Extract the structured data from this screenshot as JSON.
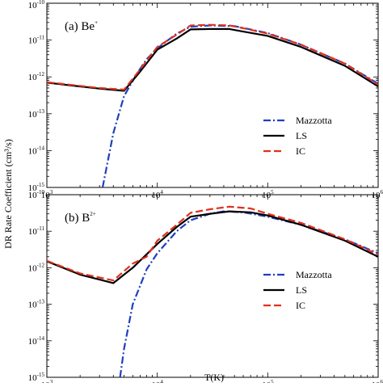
{
  "figure": {
    "ylabel": "DR Rate Coefficient (cm³/s)",
    "xlabel": "T(K)"
  },
  "legend_entries": [
    {
      "label": "Mazzotta",
      "color": "#1f3fbf",
      "style": "dash-dot"
    },
    {
      "label": "LS",
      "color": "#000000",
      "style": "solid"
    },
    {
      "label": "IC",
      "color": "#e0301e",
      "style": "dashed"
    }
  ],
  "x_ticks": [
    {
      "base": "10",
      "exp": "3",
      "value": 1000
    },
    {
      "base": "10",
      "exp": "4",
      "value": 10000
    },
    {
      "base": "10",
      "exp": "5",
      "value": 100000
    },
    {
      "base": "10",
      "exp": "6",
      "value": 1000000
    }
  ],
  "y_ticks": [
    {
      "base": "10",
      "exp": "-10",
      "value": 1e-10
    },
    {
      "base": "10",
      "exp": "-11",
      "value": 1e-11
    },
    {
      "base": "10",
      "exp": "-12",
      "value": 1e-12
    },
    {
      "base": "10",
      "exp": "-13",
      "value": 1e-13
    },
    {
      "base": "10",
      "exp": "-14",
      "value": 1e-14
    },
    {
      "base": "10",
      "exp": "-15",
      "value": 1e-15
    }
  ],
  "chart_data": [
    {
      "type": "line",
      "panel_label": "(a) Be",
      "panel_label_sup": "+",
      "xlabel": "",
      "ylabel": "DR Rate Coefficient (cm³/s)",
      "xscale": "log",
      "yscale": "log",
      "xlim": [
        1000,
        1000000
      ],
      "ylim": [
        1e-15,
        1e-10
      ],
      "legend_position": "lower-right",
      "series": [
        {
          "name": "Mazzotta",
          "x": [
            3200,
            4000,
            5000,
            6500,
            8000,
            10000,
            15000,
            20000,
            30000,
            50000,
            100000,
            200000,
            500000,
            1000000
          ],
          "y": [
            1e-15,
            3e-14,
            3e-13,
            1.2e-12,
            3e-12,
            6e-12,
            1.5e-11,
            2.3e-11,
            2.5e-11,
            2.4e-11,
            1.55e-11,
            7.5e-12,
            2.3e-12,
            6.5e-13
          ]
        },
        {
          "name": "LS",
          "x": [
            1000,
            2000,
            3000,
            5000,
            7000,
            10000,
            15000,
            20000,
            30000,
            45000,
            60000,
            100000,
            200000,
            500000,
            1000000
          ],
          "y": [
            7e-13,
            5.5e-13,
            4.8e-13,
            4.2e-13,
            1.4e-12,
            5.5e-12,
            1.1e-11,
            1.95e-11,
            2e-11,
            2e-11,
            1.7e-11,
            1.3e-11,
            6.5e-12,
            2e-12,
            5.5e-13
          ]
        },
        {
          "name": "IC",
          "x": [
            1000,
            2000,
            3000,
            5000,
            7000,
            10000,
            15000,
            20000,
            30000,
            45000,
            60000,
            100000,
            200000,
            500000,
            1000000
          ],
          "y": [
            7.2e-13,
            5.7e-13,
            5e-13,
            4.5e-13,
            1.6e-12,
            6.5e-12,
            1.4e-11,
            2.5e-11,
            2.6e-11,
            2.5e-11,
            2.1e-11,
            1.5e-11,
            7.5e-12,
            2.3e-12,
            6.2e-13
          ]
        }
      ]
    },
    {
      "type": "line",
      "panel_label": "(b) B",
      "panel_label_sup": "2+",
      "xlabel": "T(K)",
      "ylabel": "DR Rate Coefficient (cm³/s)",
      "xscale": "log",
      "yscale": "log",
      "xlim": [
        1000,
        1000000
      ],
      "ylim": [
        1e-15,
        1e-10
      ],
      "legend_position": "lower-right",
      "series": [
        {
          "name": "Mazzotta",
          "x": [
            4600,
            5000,
            6000,
            8000,
            10000,
            15000,
            20000,
            30000,
            40000,
            60000,
            100000,
            200000,
            500000,
            1000000
          ],
          "y": [
            1e-15,
            6e-15,
            1e-13,
            9e-13,
            2.5e-12,
            1e-11,
            2e-11,
            3e-11,
            3.5e-11,
            3.3e-11,
            2.5e-11,
            1.5e-11,
            6e-12,
            2.5e-12
          ]
        },
        {
          "name": "LS",
          "x": [
            1000,
            2000,
            4000,
            6000,
            10000,
            15000,
            20000,
            30000,
            45000,
            70000,
            100000,
            200000,
            500000,
            1000000
          ],
          "y": [
            1.5e-12,
            6.5e-13,
            3.8e-13,
            1e-12,
            4.5e-12,
            1.3e-11,
            2.5e-11,
            3e-11,
            3.5e-11,
            3.3e-11,
            2.7e-11,
            1.5e-11,
            5.5e-12,
            2e-12
          ]
        },
        {
          "name": "IC",
          "x": [
            1000,
            2000,
            4000,
            6000,
            8000,
            10000,
            15000,
            20000,
            30000,
            45000,
            70000,
            100000,
            200000,
            500000,
            1000000
          ],
          "y": [
            1.55e-12,
            7e-13,
            4.5e-13,
            1.3e-12,
            2e-12,
            5.5e-12,
            1.5e-11,
            3.2e-11,
            4e-11,
            4.7e-11,
            4.2e-11,
            3e-11,
            1.7e-11,
            6e-12,
            2.3e-12
          ]
        }
      ]
    }
  ]
}
